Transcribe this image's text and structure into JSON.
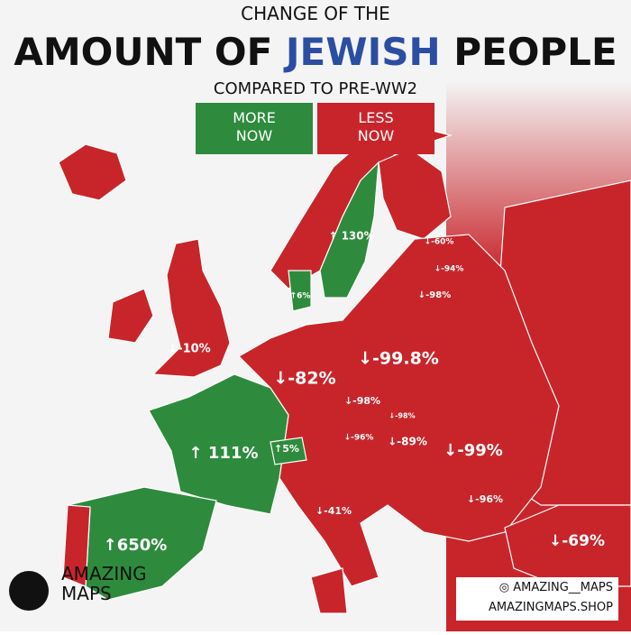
{
  "header": {
    "line1": "CHANGE OF THE",
    "line2a": "AMOUNT OF",
    "line2b": "JEWISH",
    "line2c": "PEOPLE",
    "line3": "COMPARED TO PRE-WW2"
  },
  "legend": {
    "more": "MORE NOW",
    "less": "LESS NOW"
  },
  "labels": [
    "↑ 130%",
    "↓-60%",
    "↓-94%",
    "↓-98%",
    "↑6%",
    "↓-10%",
    "↓-82%",
    "↓-99.8%",
    "↓-98%",
    "↓-98%",
    "↓-96%",
    "↓-89%",
    "↓-99%",
    "↑ 111%",
    "↑5%",
    "↓-41%",
    "↓-96%",
    "↑650%",
    "↓-69%"
  ],
  "brand": {
    "name": "AMAZING MAPS",
    "handle": "AMAZING__MAPS",
    "site": "AMAZINGMAPS.SHOP"
  }
}
